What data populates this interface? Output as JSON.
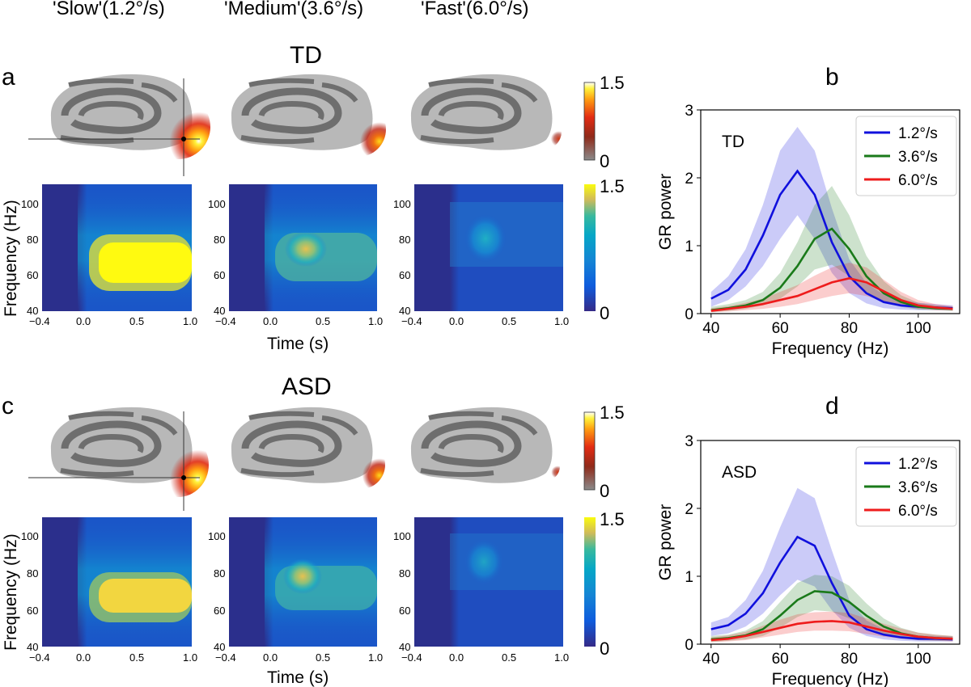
{
  "conditions": [
    "'Slow'(1.2°/s)",
    "'Medium'(3.6°/s)",
    "'Fast'(6.0°/s)"
  ],
  "panel_labels": {
    "a": "a",
    "b": "b",
    "c": "c",
    "d": "d"
  },
  "groups": {
    "td": "TD",
    "asd": "ASD"
  },
  "colorbar": {
    "brain_max": "1.5",
    "brain_min": "0",
    "tf_max": "1.5",
    "tf_min": "0"
  },
  "tf_axes": {
    "ylabel": "Frequency (Hz)",
    "xlabel": "Time (s)",
    "yticks": [
      "100",
      "80",
      "60",
      "40"
    ],
    "xticks": [
      "−0.4",
      "0.0",
      "0.5",
      "1.0"
    ]
  },
  "colors": {
    "slow": "#1010dd",
    "medium": "#1a7a1a",
    "fast": "#ee1c1c",
    "tf_bg": "#2b2f8c"
  },
  "chart_data": [
    {
      "type": "line",
      "panel": "b",
      "title": "TD",
      "xlabel": "Frequency (Hz)",
      "ylabel": "GR power",
      "xlim": [
        37,
        112
      ],
      "ylim": [
        0,
        3
      ],
      "xticks": [
        "40",
        "60",
        "80",
        "100"
      ],
      "yticks": [
        "0",
        "1",
        "2",
        "3"
      ],
      "legend_position": "top-right",
      "x": [
        40,
        45,
        50,
        55,
        60,
        65,
        70,
        75,
        80,
        85,
        90,
        95,
        100,
        105,
        110
      ],
      "series": [
        {
          "name": "1.2°/s",
          "color": "#1010dd",
          "values": [
            0.22,
            0.35,
            0.65,
            1.15,
            1.75,
            2.1,
            1.75,
            1.05,
            0.55,
            0.3,
            0.17,
            0.12,
            0.1,
            0.09,
            0.08
          ],
          "lower": [
            0.1,
            0.2,
            0.4,
            0.7,
            1.1,
            1.45,
            1.1,
            0.6,
            0.3,
            0.15,
            0.08,
            0.06,
            0.05,
            0.05,
            0.05
          ],
          "upper": [
            0.32,
            0.55,
            0.95,
            1.6,
            2.4,
            2.75,
            2.4,
            1.55,
            0.8,
            0.45,
            0.28,
            0.2,
            0.16,
            0.14,
            0.12
          ]
        },
        {
          "name": "3.6°/s",
          "color": "#1a7a1a",
          "values": [
            0.05,
            0.08,
            0.12,
            0.2,
            0.38,
            0.7,
            1.1,
            1.25,
            0.95,
            0.55,
            0.3,
            0.17,
            0.1,
            0.08,
            0.07
          ],
          "lower": [
            0.02,
            0.04,
            0.07,
            0.12,
            0.22,
            0.4,
            0.65,
            0.72,
            0.55,
            0.32,
            0.17,
            0.1,
            0.06,
            0.05,
            0.04
          ],
          "upper": [
            0.1,
            0.14,
            0.2,
            0.32,
            0.6,
            1.05,
            1.6,
            1.88,
            1.45,
            0.85,
            0.48,
            0.27,
            0.16,
            0.12,
            0.1
          ]
        },
        {
          "name": "6.0°/s",
          "color": "#ee1c1c",
          "values": [
            0.04,
            0.07,
            0.1,
            0.14,
            0.2,
            0.26,
            0.36,
            0.46,
            0.52,
            0.46,
            0.33,
            0.2,
            0.12,
            0.09,
            0.07
          ],
          "lower": [
            0.02,
            0.03,
            0.05,
            0.07,
            0.1,
            0.14,
            0.2,
            0.26,
            0.3,
            0.26,
            0.18,
            0.11,
            0.07,
            0.05,
            0.04
          ],
          "upper": [
            0.08,
            0.11,
            0.16,
            0.22,
            0.32,
            0.42,
            0.56,
            0.68,
            0.75,
            0.68,
            0.5,
            0.32,
            0.2,
            0.14,
            0.11
          ]
        }
      ]
    },
    {
      "type": "line",
      "panel": "d",
      "title": "ASD",
      "xlabel": "Frequency (Hz)",
      "ylabel": "GR power",
      "xlim": [
        37,
        112
      ],
      "ylim": [
        0,
        3
      ],
      "xticks": [
        "40",
        "60",
        "80",
        "100"
      ],
      "yticks": [
        "0",
        "1",
        "2",
        "3"
      ],
      "legend_position": "top-right",
      "x": [
        40,
        45,
        50,
        55,
        60,
        65,
        70,
        75,
        80,
        85,
        90,
        95,
        100,
        105,
        110
      ],
      "series": [
        {
          "name": "1.2°/s",
          "color": "#1010dd",
          "values": [
            0.22,
            0.28,
            0.45,
            0.75,
            1.2,
            1.58,
            1.45,
            0.9,
            0.42,
            0.22,
            0.14,
            0.1,
            0.08,
            0.08,
            0.07
          ],
          "lower": [
            0.12,
            0.16,
            0.26,
            0.45,
            0.72,
            0.95,
            0.85,
            0.5,
            0.24,
            0.12,
            0.07,
            0.05,
            0.04,
            0.04,
            0.04
          ],
          "upper": [
            0.32,
            0.4,
            0.65,
            1.08,
            1.72,
            2.3,
            2.15,
            1.38,
            0.65,
            0.35,
            0.22,
            0.16,
            0.13,
            0.12,
            0.11
          ]
        },
        {
          "name": "3.6°/s",
          "color": "#1a7a1a",
          "values": [
            0.07,
            0.09,
            0.13,
            0.22,
            0.42,
            0.65,
            0.78,
            0.76,
            0.62,
            0.42,
            0.26,
            0.16,
            0.11,
            0.09,
            0.08
          ],
          "lower": [
            0.03,
            0.05,
            0.07,
            0.12,
            0.24,
            0.4,
            0.5,
            0.48,
            0.38,
            0.25,
            0.15,
            0.09,
            0.06,
            0.05,
            0.05
          ],
          "upper": [
            0.12,
            0.14,
            0.2,
            0.34,
            0.62,
            0.9,
            1.02,
            1.0,
            0.86,
            0.6,
            0.38,
            0.24,
            0.17,
            0.14,
            0.12
          ]
        },
        {
          "name": "6.0°/s",
          "color": "#ee1c1c",
          "values": [
            0.06,
            0.08,
            0.12,
            0.18,
            0.24,
            0.3,
            0.33,
            0.34,
            0.32,
            0.26,
            0.2,
            0.15,
            0.11,
            0.09,
            0.08
          ],
          "lower": [
            0.03,
            0.04,
            0.06,
            0.1,
            0.14,
            0.18,
            0.2,
            0.2,
            0.19,
            0.15,
            0.11,
            0.08,
            0.06,
            0.05,
            0.04
          ],
          "upper": [
            0.1,
            0.13,
            0.18,
            0.27,
            0.36,
            0.44,
            0.47,
            0.48,
            0.46,
            0.38,
            0.3,
            0.23,
            0.17,
            0.14,
            0.12
          ]
        }
      ]
    }
  ]
}
